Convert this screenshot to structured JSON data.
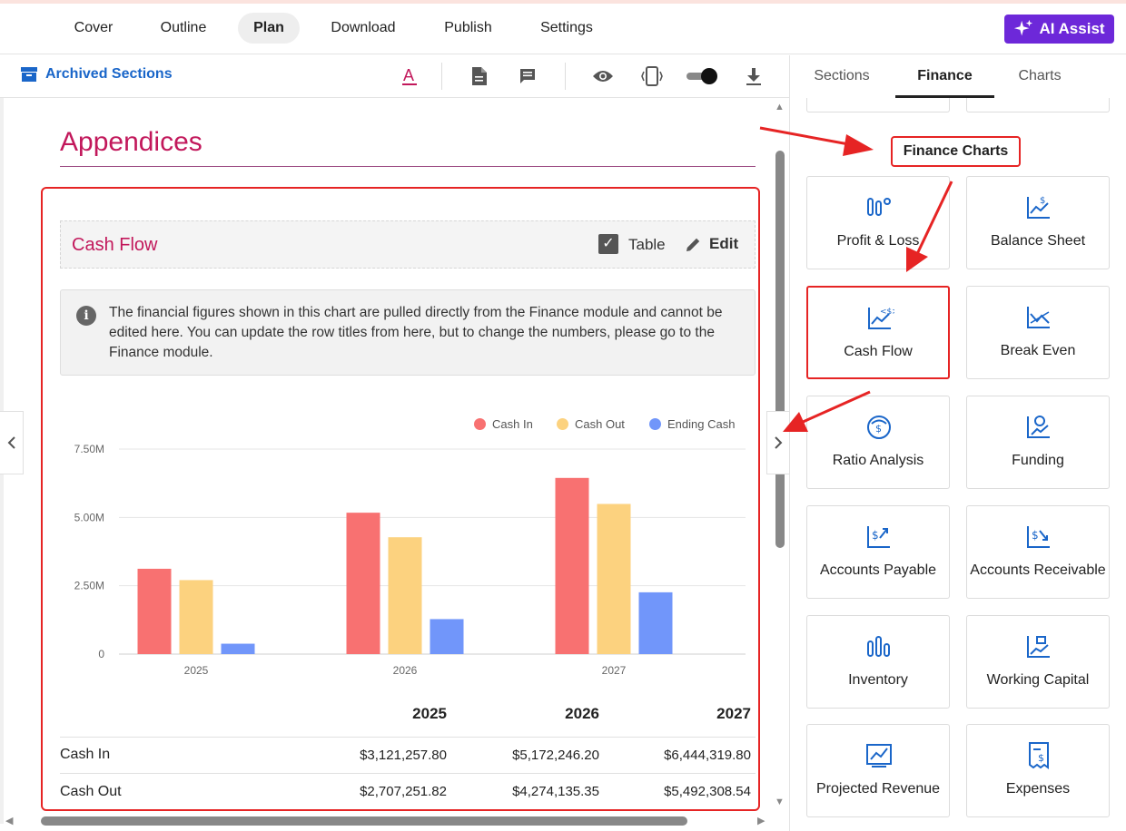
{
  "nav": {
    "tabs": [
      {
        "label": "Cover"
      },
      {
        "label": "Outline"
      },
      {
        "label": "Plan"
      },
      {
        "label": "Download"
      },
      {
        "label": "Publish"
      },
      {
        "label": "Settings"
      }
    ],
    "active": "Plan",
    "ai_assist_label": "AI Assist"
  },
  "toolbar": {
    "archived_label": "Archived Sections",
    "icons": [
      "text-color-icon",
      "document-icon",
      "comment-icon",
      "eye-icon",
      "device-icon",
      "toggle-switch",
      "download-icon"
    ]
  },
  "doc": {
    "section_title": "Appendices",
    "block": {
      "title": "Cash Flow",
      "table_checkbox_label": "Table",
      "table_checked": true,
      "edit_label": "Edit",
      "info_text": "The financial figures shown in this chart are pulled directly from the Finance module and cannot be edited here. You can update the row titles from here, but to change the numbers, please go to the Finance module."
    }
  },
  "chart_data": {
    "type": "bar",
    "categories": [
      "2025",
      "2026",
      "2027"
    ],
    "series": [
      {
        "name": "Cash In",
        "color": "#f87171",
        "values": [
          3121257.8,
          5172246.2,
          6444319.8
        ]
      },
      {
        "name": "Cash Out",
        "color": "#fcd27f",
        "values": [
          2707251.82,
          4274135.35,
          5492308.54
        ]
      },
      {
        "name": "Ending Cash",
        "color": "#7196fa",
        "values": [
          380000,
          1280000,
          2260000
        ]
      }
    ],
    "yticks": [
      "0",
      "2.50M",
      "5.00M",
      "7.50M"
    ],
    "ylim": [
      0,
      7500000
    ],
    "legend_position": "top-right",
    "grid": true
  },
  "table": {
    "headers": [
      "2025",
      "2026",
      "2027"
    ],
    "rows": [
      {
        "label": "Cash In",
        "values": [
          "$3,121,257.80",
          "$5,172,246.20",
          "$6,444,319.80"
        ]
      },
      {
        "label": "Cash Out",
        "values": [
          "$2,707,251.82",
          "$4,274,135.35",
          "$5,492,308.54"
        ]
      }
    ]
  },
  "right_panel": {
    "tabs": [
      "Sections",
      "Finance",
      "Charts"
    ],
    "active_tab": "Finance",
    "heading": "Finance Charts",
    "cards": [
      {
        "label": "Profit & Loss",
        "icon": "profit-loss-icon"
      },
      {
        "label": "Balance Sheet",
        "icon": "balance-sheet-icon"
      },
      {
        "label": "Cash Flow",
        "icon": "cash-flow-icon"
      },
      {
        "label": "Break Even",
        "icon": "break-even-icon"
      },
      {
        "label": "Ratio Analysis",
        "icon": "ratio-analysis-icon"
      },
      {
        "label": "Funding",
        "icon": "funding-icon"
      },
      {
        "label": "Accounts Payable",
        "icon": "accounts-payable-icon"
      },
      {
        "label": "Accounts Receivable",
        "icon": "accounts-receivable-icon"
      },
      {
        "label": "Inventory",
        "icon": "inventory-icon"
      },
      {
        "label": "Working Capital",
        "icon": "working-capital-icon"
      },
      {
        "label": "Projected Revenue",
        "icon": "projected-revenue-icon"
      },
      {
        "label": "Expenses",
        "icon": "expenses-icon"
      }
    ]
  },
  "colors": {
    "accent": "#c2185b",
    "link": "#1a66c9",
    "ai": "#6d28d9",
    "highlight": "#e62424",
    "icon_blue": "#1a66c9"
  }
}
